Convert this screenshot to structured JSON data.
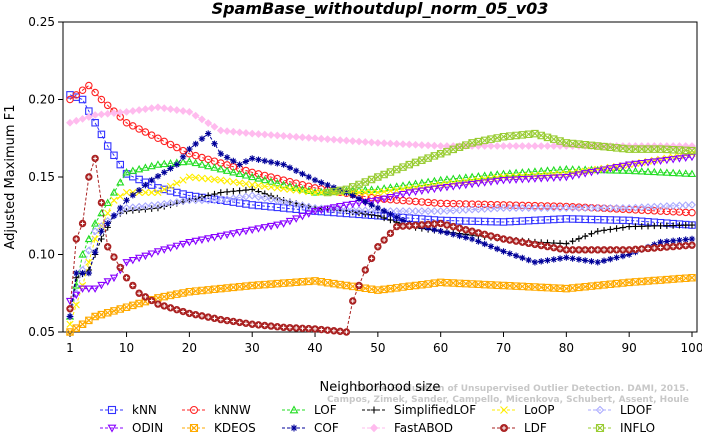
{
  "chart_data": {
    "type": "line",
    "title": "SpamBase_withoutdupl_norm_05_v03",
    "xlabel": "Neighborhood size",
    "ylabel": "Adjusted Maximum F1",
    "xlim": [
      1,
      100
    ],
    "ylim": [
      0.05,
      0.25
    ],
    "x_ticks": [
      1,
      10,
      20,
      30,
      40,
      50,
      60,
      70,
      80,
      90,
      100
    ],
    "y_ticks": [
      "0.05",
      "0.10",
      "0.15",
      "0.20",
      "0.25"
    ],
    "grid": false,
    "legend_position": "bottom",
    "watermark": [
      "Campos, Zimek, Sander, Campello, Micenkova, Schubert, Assent, Houle",
      "On the Evaluation of Unsupervised Outlier Detection. DAMI, 2015."
    ],
    "series": [
      {
        "name": "kNN",
        "color": "#3333ff",
        "marker": "square",
        "points": [
          [
            1,
            0.203
          ],
          [
            3,
            0.2
          ],
          [
            5,
            0.185
          ],
          [
            7,
            0.17
          ],
          [
            10,
            0.152
          ],
          [
            15,
            0.143
          ],
          [
            20,
            0.138
          ],
          [
            30,
            0.132
          ],
          [
            40,
            0.128
          ],
          [
            50,
            0.125
          ],
          [
            60,
            0.122
          ],
          [
            70,
            0.121
          ],
          [
            80,
            0.123
          ],
          [
            90,
            0.122
          ],
          [
            100,
            0.119
          ]
        ]
      },
      {
        "name": "kNNW",
        "color": "#ff2222",
        "marker": "circle",
        "points": [
          [
            1,
            0.2
          ],
          [
            4,
            0.209
          ],
          [
            6,
            0.2
          ],
          [
            10,
            0.185
          ],
          [
            15,
            0.175
          ],
          [
            20,
            0.165
          ],
          [
            30,
            0.153
          ],
          [
            40,
            0.143
          ],
          [
            50,
            0.136
          ],
          [
            60,
            0.133
          ],
          [
            70,
            0.132
          ],
          [
            80,
            0.131
          ],
          [
            90,
            0.129
          ],
          [
            100,
            0.127
          ]
        ]
      },
      {
        "name": "LOF",
        "color": "#22dd22",
        "marker": "triangle-up",
        "points": [
          [
            1,
            0.06
          ],
          [
            3,
            0.1
          ],
          [
            5,
            0.12
          ],
          [
            8,
            0.14
          ],
          [
            10,
            0.153
          ],
          [
            15,
            0.158
          ],
          [
            20,
            0.16
          ],
          [
            25,
            0.155
          ],
          [
            30,
            0.15
          ],
          [
            40,
            0.14
          ],
          [
            50,
            0.142
          ],
          [
            60,
            0.148
          ],
          [
            70,
            0.152
          ],
          [
            80,
            0.155
          ],
          [
            90,
            0.154
          ],
          [
            100,
            0.152
          ]
        ]
      },
      {
        "name": "SimplifiedLOF",
        "color": "#000000",
        "marker": "plus",
        "points": [
          [
            1,
            0.06
          ],
          [
            2,
            0.085
          ],
          [
            4,
            0.09
          ],
          [
            6,
            0.11
          ],
          [
            8,
            0.125
          ],
          [
            10,
            0.128
          ],
          [
            15,
            0.13
          ],
          [
            20,
            0.135
          ],
          [
            25,
            0.14
          ],
          [
            30,
            0.142
          ],
          [
            35,
            0.135
          ],
          [
            40,
            0.13
          ],
          [
            45,
            0.128
          ],
          [
            50,
            0.125
          ],
          [
            55,
            0.118
          ],
          [
            60,
            0.115
          ],
          [
            70,
            0.11
          ],
          [
            75,
            0.108
          ],
          [
            80,
            0.107
          ],
          [
            85,
            0.115
          ],
          [
            90,
            0.118
          ],
          [
            100,
            0.119
          ]
        ]
      },
      {
        "name": "LoOP",
        "color": "#ffee00",
        "marker": "x",
        "points": [
          [
            1,
            0.055
          ],
          [
            3,
            0.08
          ],
          [
            5,
            0.11
          ],
          [
            8,
            0.135
          ],
          [
            10,
            0.14
          ],
          [
            15,
            0.14
          ],
          [
            20,
            0.15
          ],
          [
            25,
            0.148
          ],
          [
            30,
            0.145
          ],
          [
            40,
            0.14
          ],
          [
            50,
            0.14
          ],
          [
            60,
            0.145
          ],
          [
            70,
            0.15
          ],
          [
            80,
            0.152
          ],
          [
            90,
            0.158
          ],
          [
            100,
            0.165
          ]
        ]
      },
      {
        "name": "LDOF",
        "color": "#aaaaff",
        "marker": "diamond",
        "points": [
          [
            1,
            0.06
          ],
          [
            3,
            0.09
          ],
          [
            5,
            0.115
          ],
          [
            8,
            0.125
          ],
          [
            10,
            0.13
          ],
          [
            15,
            0.132
          ],
          [
            20,
            0.135
          ],
          [
            25,
            0.135
          ],
          [
            30,
            0.138
          ],
          [
            40,
            0.13
          ],
          [
            50,
            0.128
          ],
          [
            60,
            0.128
          ],
          [
            70,
            0.13
          ],
          [
            80,
            0.13
          ],
          [
            90,
            0.13
          ],
          [
            100,
            0.132
          ]
        ]
      },
      {
        "name": "ODIN",
        "color": "#8800ff",
        "marker": "triangle-down",
        "points": [
          [
            1,
            0.07
          ],
          [
            3,
            0.078
          ],
          [
            5,
            0.078
          ],
          [
            8,
            0.085
          ],
          [
            10,
            0.095
          ],
          [
            15,
            0.102
          ],
          [
            20,
            0.108
          ],
          [
            25,
            0.112
          ],
          [
            30,
            0.116
          ],
          [
            35,
            0.12
          ],
          [
            40,
            0.128
          ],
          [
            45,
            0.132
          ],
          [
            50,
            0.135
          ],
          [
            55,
            0.14
          ],
          [
            60,
            0.143
          ],
          [
            70,
            0.148
          ],
          [
            80,
            0.15
          ],
          [
            90,
            0.158
          ],
          [
            100,
            0.163
          ]
        ]
      },
      {
        "name": "KDEOS",
        "color": "#ffaa00",
        "marker": "square-x",
        "points": [
          [
            1,
            0.05
          ],
          [
            5,
            0.06
          ],
          [
            10,
            0.066
          ],
          [
            15,
            0.072
          ],
          [
            20,
            0.076
          ],
          [
            30,
            0.08
          ],
          [
            40,
            0.083
          ],
          [
            50,
            0.077
          ],
          [
            60,
            0.082
          ],
          [
            70,
            0.08
          ],
          [
            80,
            0.078
          ],
          [
            90,
            0.082
          ],
          [
            100,
            0.085
          ]
        ]
      },
      {
        "name": "COF",
        "color": "#000099",
        "marker": "star",
        "points": [
          [
            1,
            0.06
          ],
          [
            2,
            0.088
          ],
          [
            4,
            0.088
          ],
          [
            6,
            0.115
          ],
          [
            8,
            0.125
          ],
          [
            10,
            0.135
          ],
          [
            14,
            0.148
          ],
          [
            18,
            0.158
          ],
          [
            20,
            0.168
          ],
          [
            23,
            0.178
          ],
          [
            25,
            0.165
          ],
          [
            28,
            0.158
          ],
          [
            30,
            0.162
          ],
          [
            35,
            0.158
          ],
          [
            40,
            0.148
          ],
          [
            45,
            0.14
          ],
          [
            50,
            0.13
          ],
          [
            55,
            0.12
          ],
          [
            60,
            0.115
          ],
          [
            65,
            0.11
          ],
          [
            70,
            0.102
          ],
          [
            75,
            0.095
          ],
          [
            80,
            0.098
          ],
          [
            85,
            0.095
          ],
          [
            90,
            0.1
          ],
          [
            95,
            0.108
          ],
          [
            100,
            0.11
          ]
        ]
      },
      {
        "name": "FastABOD",
        "color": "#ffbbee",
        "marker": "diamond-filled",
        "points": [
          [
            1,
            0.185
          ],
          [
            5,
            0.19
          ],
          [
            10,
            0.192
          ],
          [
            15,
            0.195
          ],
          [
            20,
            0.192
          ],
          [
            25,
            0.18
          ],
          [
            30,
            0.178
          ],
          [
            40,
            0.175
          ],
          [
            50,
            0.172
          ],
          [
            60,
            0.17
          ],
          [
            70,
            0.17
          ],
          [
            80,
            0.17
          ],
          [
            90,
            0.17
          ],
          [
            100,
            0.17
          ]
        ]
      },
      {
        "name": "LDF",
        "color": "#aa2222",
        "marker": "circle-plus",
        "points": [
          [
            1,
            0.065
          ],
          [
            2,
            0.11
          ],
          [
            3,
            0.12
          ],
          [
            4,
            0.15
          ],
          [
            5,
            0.162
          ],
          [
            7,
            0.105
          ],
          [
            10,
            0.085
          ],
          [
            12,
            0.075
          ],
          [
            15,
            0.068
          ],
          [
            20,
            0.062
          ],
          [
            25,
            0.058
          ],
          [
            30,
            0.055
          ],
          [
            35,
            0.053
          ],
          [
            40,
            0.052
          ],
          [
            45,
            0.05
          ],
          [
            46,
            0.07
          ],
          [
            48,
            0.09
          ],
          [
            50,
            0.105
          ],
          [
            53,
            0.118
          ],
          [
            60,
            0.12
          ],
          [
            70,
            0.11
          ],
          [
            80,
            0.103
          ],
          [
            90,
            0.103
          ],
          [
            100,
            0.106
          ]
        ]
      },
      {
        "name": "INFLO",
        "color": "#99cc33",
        "marker": "square-x",
        "points": [
          [
            42,
            0.14
          ],
          [
            45,
            0.142
          ],
          [
            50,
            0.15
          ],
          [
            55,
            0.158
          ],
          [
            60,
            0.165
          ],
          [
            65,
            0.172
          ],
          [
            70,
            0.176
          ],
          [
            75,
            0.178
          ],
          [
            80,
            0.172
          ],
          [
            85,
            0.17
          ],
          [
            90,
            0.168
          ],
          [
            95,
            0.168
          ],
          [
            100,
            0.167
          ]
        ]
      }
    ]
  }
}
